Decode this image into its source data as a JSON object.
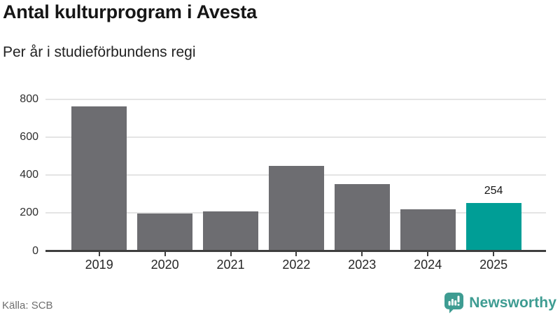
{
  "header": {
    "title": "Antal kulturprogram i Avesta",
    "subtitle": "Per år i studieförbundens regi"
  },
  "footer": {
    "source": "Källa: SCB",
    "brand": "Newsworthy"
  },
  "colors": {
    "bar": "#6d6d71",
    "highlight": "#009e96",
    "axis": "#3f3f3f",
    "grid": "#e4e4e4",
    "brand": "#3e9c92"
  },
  "chart_data": {
    "type": "bar",
    "title": "Antal kulturprogram i Avesta",
    "subtitle": "Per år i studieförbundens regi",
    "categories": [
      "2019",
      "2020",
      "2021",
      "2022",
      "2023",
      "2024",
      "2025"
    ],
    "values": [
      760,
      197,
      208,
      448,
      351,
      219,
      254
    ],
    "highlight_index": 6,
    "highlight_value_label": "254",
    "xlabel": "",
    "ylabel": "",
    "ylim": [
      0,
      800
    ],
    "yticks": [
      0,
      200,
      400,
      600,
      800
    ],
    "grid": true,
    "legend": false,
    "source": "Källa: SCB"
  }
}
